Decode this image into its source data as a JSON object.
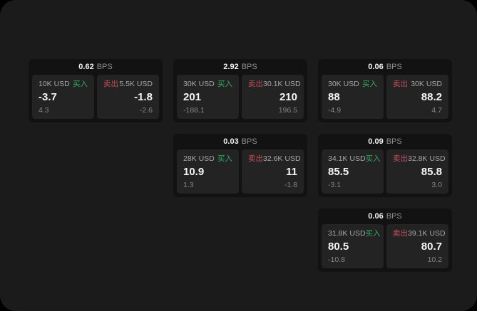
{
  "labels": {
    "bps_unit": "BPS",
    "buy": "买入",
    "sell": "卖出"
  },
  "colors": {
    "page_outer": "#000000",
    "surface": "#1b1b1b",
    "card_bg": "#121212",
    "panel_bg": "#232323",
    "buy_green": "#36a863",
    "sell_red": "#c74e63"
  },
  "cards": [
    {
      "bps": "0.62",
      "buy": {
        "amount": "10K USD",
        "value": "-3.7",
        "delta": "4.3"
      },
      "sell": {
        "amount": "5.5K USD",
        "value": "-1.8",
        "delta": "-2.6"
      }
    },
    {
      "bps": "2.92",
      "buy": {
        "amount": "30K USD",
        "value": "201",
        "delta": "-188.1"
      },
      "sell": {
        "amount": "30.1K USD",
        "value": "210",
        "delta": "196.5"
      }
    },
    {
      "bps": "0.06",
      "buy": {
        "amount": "30K USD",
        "value": "88",
        "delta": "-4.9"
      },
      "sell": {
        "amount": "30K USD",
        "value": "88.2",
        "delta": "4.7"
      }
    },
    {
      "bps": "0.03",
      "buy": {
        "amount": "28K USD",
        "value": "10.9",
        "delta": "1.3"
      },
      "sell": {
        "amount": "32.6K USD",
        "value": "11",
        "delta": "-1.8"
      }
    },
    {
      "bps": "0.09",
      "buy": {
        "amount": "34.1K USD",
        "value": "85.5",
        "delta": "-3.1"
      },
      "sell": {
        "amount": "32.8K USD",
        "value": "85.8",
        "delta": "3.0"
      }
    },
    {
      "bps": "0.06",
      "buy": {
        "amount": "31.8K USD",
        "value": "80.5",
        "delta": "-10.8"
      },
      "sell": {
        "amount": "39.1K USD",
        "value": "80.7",
        "delta": "10.2"
      }
    }
  ]
}
